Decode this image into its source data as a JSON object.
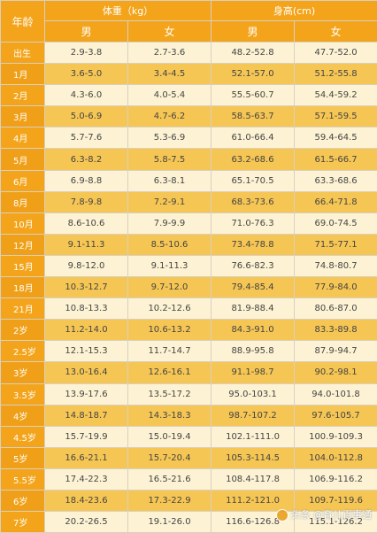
{
  "header": {
    "age": "年龄",
    "weight": "体重（kg）",
    "height": "身高(cm)",
    "male": "男",
    "female": "女"
  },
  "rows": [
    {
      "age": "出生",
      "wm": "2.9-3.8",
      "wf": "2.7-3.6",
      "hm": "48.2-52.8",
      "hf": "47.7-52.0"
    },
    {
      "age": "1月",
      "wm": "3.6-5.0",
      "wf": "3.4-4.5",
      "hm": "52.1-57.0",
      "hf": "51.2-55.8"
    },
    {
      "age": "2月",
      "wm": "4.3-6.0",
      "wf": "4.0-5.4",
      "hm": "55.5-60.7",
      "hf": "54.4-59.2"
    },
    {
      "age": "3月",
      "wm": "5.0-6.9",
      "wf": "4.7-6.2",
      "hm": "58.5-63.7",
      "hf": "57.1-59.5"
    },
    {
      "age": "4月",
      "wm": "5.7-7.6",
      "wf": "5.3-6.9",
      "hm": "61.0-66.4",
      "hf": "59.4-64.5"
    },
    {
      "age": "5月",
      "wm": "6.3-8.2",
      "wf": "5.8-7.5",
      "hm": "63.2-68.6",
      "hf": "61.5-66.7"
    },
    {
      "age": "6月",
      "wm": "6.9-8.8",
      "wf": "6.3-8.1",
      "hm": "65.1-70.5",
      "hf": "63.3-68.6"
    },
    {
      "age": "8月",
      "wm": "7.8-9.8",
      "wf": "7.2-9.1",
      "hm": "68.3-73.6",
      "hf": "66.4-71.8"
    },
    {
      "age": "10月",
      "wm": "8.6-10.6",
      "wf": "7.9-9.9",
      "hm": "71.0-76.3",
      "hf": "69.0-74.5"
    },
    {
      "age": "12月",
      "wm": "9.1-11.3",
      "wf": "8.5-10.6",
      "hm": "73.4-78.8",
      "hf": "71.5-77.1"
    },
    {
      "age": "15月",
      "wm": "9.8-12.0",
      "wf": "9.1-11.3",
      "hm": "76.6-82.3",
      "hf": "74.8-80.7"
    },
    {
      "age": "18月",
      "wm": "10.3-12.7",
      "wf": "9.7-12.0",
      "hm": "79.4-85.4",
      "hf": "77.9-84.0"
    },
    {
      "age": "21月",
      "wm": "10.8-13.3",
      "wf": "10.2-12.6",
      "hm": "81.9-88.4",
      "hf": "80.6-87.0"
    },
    {
      "age": "2岁",
      "wm": "11.2-14.0",
      "wf": "10.6-13.2",
      "hm": "84.3-91.0",
      "hf": "83.3-89.8"
    },
    {
      "age": "2.5岁",
      "wm": "12.1-15.3",
      "wf": "11.7-14.7",
      "hm": "88.9-95.8",
      "hf": "87.9-94.7"
    },
    {
      "age": "3岁",
      "wm": "13.0-16.4",
      "wf": "12.6-16.1",
      "hm": "91.1-98.7",
      "hf": "90.2-98.1"
    },
    {
      "age": "3.5岁",
      "wm": "13.9-17.6",
      "wf": "13.5-17.2",
      "hm": "95.0-103.1",
      "hf": "94.0-101.8"
    },
    {
      "age": "4岁",
      "wm": "14.8-18.7",
      "wf": "14.3-18.3",
      "hm": "98.7-107.2",
      "hf": "97.6-105.7"
    },
    {
      "age": "4.5岁",
      "wm": "15.7-19.9",
      "wf": "15.0-19.4",
      "hm": "102.1-111.0",
      "hf": "100.9-109.3"
    },
    {
      "age": "5岁",
      "wm": "16.6-21.1",
      "wf": "15.7-20.4",
      "hm": "105.3-114.5",
      "hf": "104.0-112.8"
    },
    {
      "age": "5.5岁",
      "wm": "17.4-22.3",
      "wf": "16.5-21.6",
      "hm": "108.4-117.8",
      "hf": "106.9-116.2"
    },
    {
      "age": "6岁",
      "wm": "18.4-23.6",
      "wf": "17.3-22.9",
      "hm": "111.2-121.0",
      "hf": "109.7-119.6"
    },
    {
      "age": "7岁",
      "wm": "20.2-26.5",
      "wf": "19.1-26.0",
      "hm": "116.6-126.8",
      "hf": "115.1-126.2"
    }
  ],
  "watermark": "头条 @育儿百事通"
}
